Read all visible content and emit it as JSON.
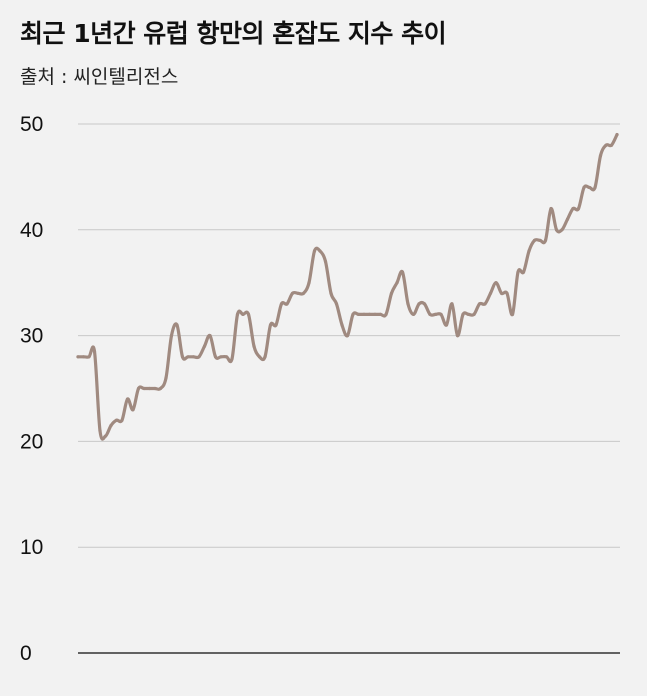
{
  "title": "최근 1년간 유럽 항만의 혼잡도 지수 추이",
  "source": "출처 : 씨인텔리전스",
  "colors": {
    "line": "#a08a80",
    "grid": "#c8c8c8",
    "axis": "#333333",
    "background": "#f2f2f2"
  },
  "chart_data": {
    "type": "line",
    "title": "최근 1년간 유럽 항만의 혼잡도 지수 추이",
    "xlabel": "",
    "ylabel": "",
    "ylim": [
      0,
      50
    ],
    "yticks": [
      0,
      10,
      20,
      30,
      40,
      50
    ],
    "grid": true,
    "series": [
      {
        "values": [
          28,
          28,
          28,
          28.5,
          21,
          20.5,
          21.5,
          22,
          22,
          24,
          23,
          25,
          25,
          25,
          25,
          25,
          26,
          30,
          31,
          28,
          28,
          28,
          28,
          29,
          30,
          28,
          28,
          28,
          27.8,
          32,
          32,
          32,
          29,
          28,
          28,
          31,
          31,
          33,
          33,
          34,
          34,
          34,
          35,
          38,
          38,
          37,
          34,
          33,
          31,
          30,
          32,
          32,
          32,
          32,
          32,
          32,
          32,
          34,
          35,
          36,
          33,
          32,
          33,
          33,
          32,
          32,
          32,
          31,
          33,
          30,
          32,
          32,
          32,
          33,
          33,
          34,
          35,
          34,
          34,
          32,
          36,
          36,
          38,
          39,
          39,
          39,
          42,
          40,
          40,
          41,
          42,
          42,
          44,
          44,
          44,
          47,
          48,
          48,
          49
        ]
      }
    ]
  }
}
